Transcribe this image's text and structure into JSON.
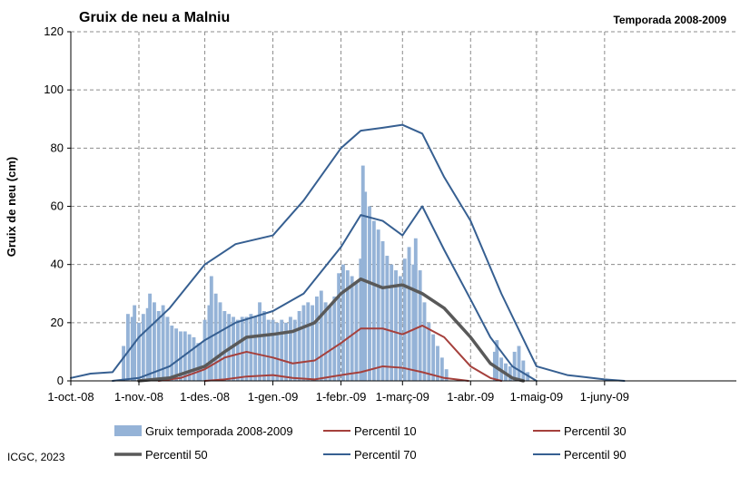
{
  "chart_data": {
    "type": "bar",
    "title": "Gruix de neu a Malniu",
    "subtitle": "Temporada 2008-2009",
    "ylabel": "Gruix de neu (cm)",
    "xlabel": "",
    "ylim": [
      0,
      120
    ],
    "yticks": [
      "0",
      "20",
      "40",
      "60",
      "80",
      "100",
      "120"
    ],
    "xlim": [
      "2008-10-01",
      "2009-07-31"
    ],
    "xticks": [
      {
        "date": "2008-10-01",
        "label": "1-oct.-08"
      },
      {
        "date": "2008-11-01",
        "label": "1-nov.-08"
      },
      {
        "date": "2008-12-01",
        "label": "1-des.-08"
      },
      {
        "date": "2009-01-01",
        "label": "1-gen.-09"
      },
      {
        "date": "2009-02-01",
        "label": "1-febr.-09"
      },
      {
        "date": "2009-03-01",
        "label": "1-març-09"
      },
      {
        "date": "2009-04-01",
        "label": "1-abr.-09"
      },
      {
        "date": "2009-05-01",
        "label": "1-maig-09"
      },
      {
        "date": "2009-06-01",
        "label": "1-juny-09"
      }
    ],
    "grid": true,
    "legend_position": "bottom",
    "colors": {
      "bars": "#95b3d7",
      "p10": "#a5403c",
      "p30": "#a5403c",
      "p50": "#595959",
      "p70": "#365f91",
      "p90": "#365f91"
    },
    "series": [
      {
        "name": "Gruix temporada 2008-2009",
        "type": "bar",
        "points": [
          [
            "2008-10-25",
            12
          ],
          [
            "2008-10-27",
            23
          ],
          [
            "2008-10-29",
            22
          ],
          [
            "2008-10-30",
            26
          ],
          [
            "2008-11-01",
            20
          ],
          [
            "2008-11-03",
            23
          ],
          [
            "2008-11-05",
            25
          ],
          [
            "2008-11-06",
            30
          ],
          [
            "2008-11-08",
            27
          ],
          [
            "2008-11-10",
            24
          ],
          [
            "2008-11-12",
            26
          ],
          [
            "2008-11-14",
            22
          ],
          [
            "2008-11-16",
            19
          ],
          [
            "2008-11-18",
            18
          ],
          [
            "2008-11-20",
            17
          ],
          [
            "2008-11-22",
            17
          ],
          [
            "2008-11-24",
            16
          ],
          [
            "2008-11-26",
            15
          ],
          [
            "2008-11-28",
            13
          ],
          [
            "2008-11-29",
            13
          ],
          [
            "2008-12-01",
            21
          ],
          [
            "2008-12-03",
            26
          ],
          [
            "2008-12-04",
            36
          ],
          [
            "2008-12-06",
            30
          ],
          [
            "2008-12-08",
            27
          ],
          [
            "2008-12-10",
            24
          ],
          [
            "2008-12-12",
            23
          ],
          [
            "2008-12-14",
            22
          ],
          [
            "2008-12-16",
            21
          ],
          [
            "2008-12-18",
            22
          ],
          [
            "2008-12-20",
            22
          ],
          [
            "2008-12-22",
            23
          ],
          [
            "2008-12-24",
            22
          ],
          [
            "2008-12-26",
            27
          ],
          [
            "2008-12-28",
            24
          ],
          [
            "2008-12-30",
            21
          ],
          [
            "2009-01-01",
            21
          ],
          [
            "2009-01-03",
            20
          ],
          [
            "2009-01-05",
            21
          ],
          [
            "2009-01-07",
            20
          ],
          [
            "2009-01-09",
            22
          ],
          [
            "2009-01-11",
            21
          ],
          [
            "2009-01-13",
            24
          ],
          [
            "2009-01-15",
            26
          ],
          [
            "2009-01-17",
            27
          ],
          [
            "2009-01-19",
            26
          ],
          [
            "2009-01-21",
            29
          ],
          [
            "2009-01-23",
            31
          ],
          [
            "2009-01-25",
            27
          ],
          [
            "2009-01-27",
            26
          ],
          [
            "2009-01-29",
            29
          ],
          [
            "2009-01-31",
            37
          ],
          [
            "2009-02-02",
            40
          ],
          [
            "2009-02-04",
            38
          ],
          [
            "2009-02-06",
            36
          ],
          [
            "2009-02-08",
            34
          ],
          [
            "2009-02-10",
            42
          ],
          [
            "2009-02-11",
            74
          ],
          [
            "2009-02-12",
            65
          ],
          [
            "2009-02-14",
            60
          ],
          [
            "2009-02-16",
            55
          ],
          [
            "2009-02-18",
            52
          ],
          [
            "2009-02-20",
            48
          ],
          [
            "2009-02-22",
            43
          ],
          [
            "2009-02-24",
            40
          ],
          [
            "2009-02-26",
            38
          ],
          [
            "2009-02-28",
            36
          ],
          [
            "2009-03-02",
            42
          ],
          [
            "2009-03-04",
            46
          ],
          [
            "2009-03-06",
            40
          ],
          [
            "2009-03-07",
            49
          ],
          [
            "2009-03-09",
            38
          ],
          [
            "2009-03-11",
            27
          ],
          [
            "2009-03-13",
            20
          ],
          [
            "2009-03-15",
            16
          ],
          [
            "2009-03-17",
            12
          ],
          [
            "2009-03-19",
            8
          ],
          [
            "2009-03-21",
            4
          ],
          [
            "2009-04-12",
            10
          ],
          [
            "2009-04-13",
            14
          ],
          [
            "2009-04-15",
            8
          ],
          [
            "2009-04-17",
            6
          ],
          [
            "2009-04-19",
            5
          ],
          [
            "2009-04-21",
            10
          ],
          [
            "2009-04-23",
            12
          ],
          [
            "2009-04-25",
            7
          ],
          [
            "2009-04-27",
            3
          ]
        ]
      },
      {
        "name": "Percentil 10",
        "type": "line",
        "points": [
          [
            "2008-12-01",
            0
          ],
          [
            "2008-12-10",
            0.5
          ],
          [
            "2008-12-20",
            1.5
          ],
          [
            "2009-01-01",
            2
          ],
          [
            "2009-01-10",
            1
          ],
          [
            "2009-01-20",
            0.5
          ],
          [
            "2009-02-01",
            2
          ],
          [
            "2009-02-10",
            3
          ],
          [
            "2009-02-20",
            5
          ],
          [
            "2009-03-01",
            4.5
          ],
          [
            "2009-03-10",
            3
          ],
          [
            "2009-03-20",
            1
          ],
          [
            "2009-03-31",
            0
          ]
        ]
      },
      {
        "name": "Percentil 30",
        "type": "line",
        "points": [
          [
            "2008-11-10",
            0
          ],
          [
            "2008-11-20",
            1
          ],
          [
            "2008-12-01",
            4
          ],
          [
            "2008-12-10",
            8
          ],
          [
            "2008-12-20",
            10
          ],
          [
            "2009-01-01",
            8
          ],
          [
            "2009-01-10",
            6
          ],
          [
            "2009-01-20",
            7
          ],
          [
            "2009-02-01",
            13
          ],
          [
            "2009-02-10",
            18
          ],
          [
            "2009-02-20",
            18
          ],
          [
            "2009-03-01",
            16
          ],
          [
            "2009-03-10",
            19
          ],
          [
            "2009-03-20",
            15
          ],
          [
            "2009-04-01",
            5
          ],
          [
            "2009-04-10",
            1
          ],
          [
            "2009-04-15",
            0
          ]
        ]
      },
      {
        "name": "Percentil 50",
        "type": "line",
        "points": [
          [
            "2008-11-01",
            0
          ],
          [
            "2008-11-15",
            1
          ],
          [
            "2008-12-01",
            5
          ],
          [
            "2008-12-10",
            10
          ],
          [
            "2008-12-20",
            15
          ],
          [
            "2009-01-01",
            16
          ],
          [
            "2009-01-10",
            17
          ],
          [
            "2009-01-20",
            20
          ],
          [
            "2009-02-01",
            30
          ],
          [
            "2009-02-10",
            35
          ],
          [
            "2009-02-20",
            32
          ],
          [
            "2009-03-01",
            33
          ],
          [
            "2009-03-10",
            30
          ],
          [
            "2009-03-20",
            25
          ],
          [
            "2009-04-01",
            15
          ],
          [
            "2009-04-10",
            6
          ],
          [
            "2009-04-20",
            1
          ],
          [
            "2009-04-25",
            0
          ]
        ]
      },
      {
        "name": "Percentil 70",
        "type": "line",
        "points": [
          [
            "2008-10-20",
            0
          ],
          [
            "2008-11-01",
            1
          ],
          [
            "2008-11-15",
            5
          ],
          [
            "2008-12-01",
            14
          ],
          [
            "2008-12-15",
            20
          ],
          [
            "2009-01-01",
            24
          ],
          [
            "2009-01-15",
            30
          ],
          [
            "2009-02-01",
            46
          ],
          [
            "2009-02-10",
            57
          ],
          [
            "2009-02-20",
            55
          ],
          [
            "2009-03-01",
            50
          ],
          [
            "2009-03-10",
            60
          ],
          [
            "2009-03-20",
            45
          ],
          [
            "2009-04-01",
            28
          ],
          [
            "2009-04-10",
            15
          ],
          [
            "2009-04-20",
            5
          ],
          [
            "2009-05-01",
            0
          ]
        ]
      },
      {
        "name": "Percentil 90",
        "type": "line",
        "points": [
          [
            "2008-10-01",
            1
          ],
          [
            "2008-10-10",
            2.5
          ],
          [
            "2008-10-20",
            3
          ],
          [
            "2008-11-01",
            15
          ],
          [
            "2008-11-15",
            25
          ],
          [
            "2008-12-01",
            40
          ],
          [
            "2008-12-15",
            47
          ],
          [
            "2009-01-01",
            50
          ],
          [
            "2009-01-15",
            62
          ],
          [
            "2009-02-01",
            80
          ],
          [
            "2009-02-10",
            86
          ],
          [
            "2009-02-20",
            87
          ],
          [
            "2009-03-01",
            88
          ],
          [
            "2009-03-10",
            85
          ],
          [
            "2009-03-20",
            70
          ],
          [
            "2009-04-01",
            55
          ],
          [
            "2009-04-15",
            30
          ],
          [
            "2009-05-01",
            5
          ],
          [
            "2009-05-15",
            2
          ],
          [
            "2009-06-01",
            0.5
          ],
          [
            "2009-06-10",
            0
          ]
        ]
      }
    ]
  },
  "footer": {
    "credit": "ICGC, 2023"
  }
}
